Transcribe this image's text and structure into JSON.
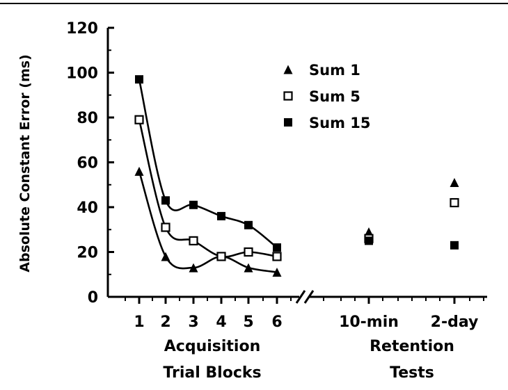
{
  "chart_data": {
    "type": "line",
    "ylabel": "Absolute Constant Error (ms)",
    "ylim": [
      0,
      120
    ],
    "yticks": [
      0,
      20,
      40,
      60,
      80,
      100,
      120
    ],
    "acquisition": {
      "title_lines": [
        "Acquisition",
        "Trial Blocks"
      ],
      "x": [
        "1",
        "2",
        "3",
        "4",
        "5",
        "6"
      ]
    },
    "retention": {
      "title_lines": [
        "Retention",
        "Tests"
      ],
      "x": [
        "10-min",
        "2-day"
      ]
    },
    "series": [
      {
        "name": "Sum 1",
        "marker": "triangle-filled",
        "acquisition": [
          56,
          18,
          13,
          18,
          13,
          11
        ],
        "retention": [
          29,
          51
        ]
      },
      {
        "name": "Sum 5",
        "marker": "square-open",
        "acquisition": [
          79,
          31,
          25,
          18,
          20,
          18
        ],
        "retention": [
          26,
          42
        ]
      },
      {
        "name": "Sum 15",
        "marker": "square-filled",
        "acquisition": [
          97,
          43,
          41,
          36,
          32,
          22
        ],
        "retention": [
          25,
          23
        ]
      }
    ],
    "legend_position": "top-right",
    "grid": false
  }
}
